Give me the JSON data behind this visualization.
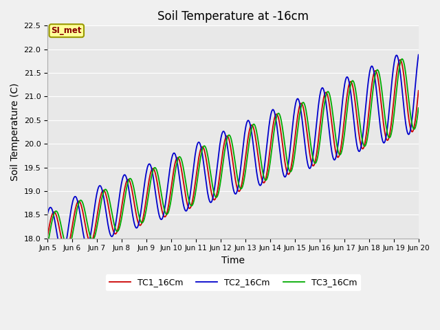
{
  "title": "Soil Temperature at -16cm",
  "xlabel": "Time",
  "ylabel": "Soil Temperature (C)",
  "ylim": [
    18.0,
    22.5
  ],
  "yticks": [
    18.0,
    18.5,
    19.0,
    19.5,
    20.0,
    20.5,
    21.0,
    21.5,
    22.0,
    22.5
  ],
  "xtick_labels": [
    "Jun 5",
    "Jun 6",
    "Jun 7",
    "Jun 8",
    "Jun 9",
    "Jun 10",
    "Jun 11",
    "Jun 12",
    "Jun 13",
    "Jun 14",
    "Jun 15",
    "Jun 16",
    "Jun 17",
    "Jun 18",
    "Jun 19",
    "Jun 20"
  ],
  "line_colors": [
    "#cc0000",
    "#0000cc",
    "#00aa00"
  ],
  "line_labels": [
    "TC1_16Cm",
    "TC2_16Cm",
    "TC3_16Cm"
  ],
  "bg_color": "#e8e8e8",
  "grid_color": "#ffffff",
  "annotation_text": "SI_met",
  "annotation_bg": "#ffff99",
  "annotation_border": "#999900",
  "fig_bg": "#f0f0f0"
}
